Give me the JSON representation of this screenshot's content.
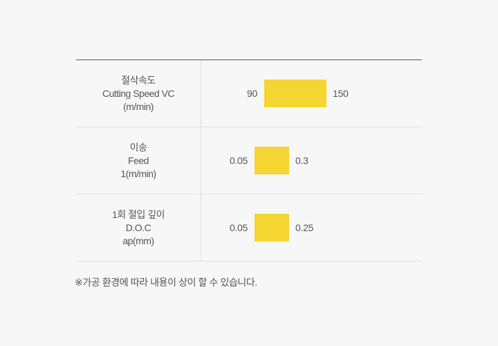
{
  "accent_color": "#f4d531",
  "rows": [
    {
      "label_ko": "절삭속도",
      "label_en": "Cutting Speed VC",
      "unit": "(m/min)",
      "min": "90",
      "max": "150"
    },
    {
      "label_ko": "이송",
      "label_en": "Feed",
      "unit": "1(m/min)",
      "min": "0.05",
      "max": "0.3"
    },
    {
      "label_ko": "1회 절입 깊이",
      "label_en": "D.O.C",
      "unit": "ap(mm)",
      "min": "0.05",
      "max": "0.25"
    }
  ],
  "note": "※가공 환경에 따라 내용이 상이 할 수 있습니다."
}
